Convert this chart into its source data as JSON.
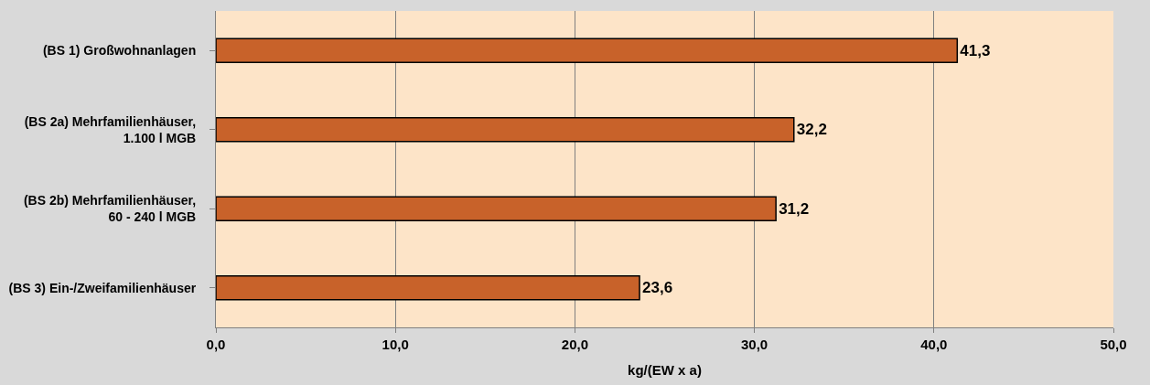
{
  "chart_data": {
    "type": "bar",
    "orientation": "horizontal",
    "categories": [
      "(BS 1) Großwohnanlagen",
      "(BS 2a) Mehrfamilienhäuser,\n1.100 l MGB",
      "(BS 2b) Mehrfamilienhäuser,\n60 - 240 l MGB",
      "(BS 3) Ein-/Zweifamilienhäuser"
    ],
    "values": [
      41.3,
      32.2,
      31.2,
      23.6
    ],
    "value_labels": [
      "41,3",
      "32,2",
      "31,2",
      "23,6"
    ],
    "color": "#c8622a",
    "xlabel": "kg/(EW x a)",
    "xlim": [
      0,
      50
    ],
    "xticks": [
      {
        "value": 0,
        "label": "0,0"
      },
      {
        "value": 10,
        "label": "10,0"
      },
      {
        "value": 20,
        "label": "20,0"
      },
      {
        "value": 30,
        "label": "30,0"
      },
      {
        "value": 40,
        "label": "40,0"
      },
      {
        "value": 50,
        "label": "50,0"
      }
    ],
    "grid": "x"
  }
}
